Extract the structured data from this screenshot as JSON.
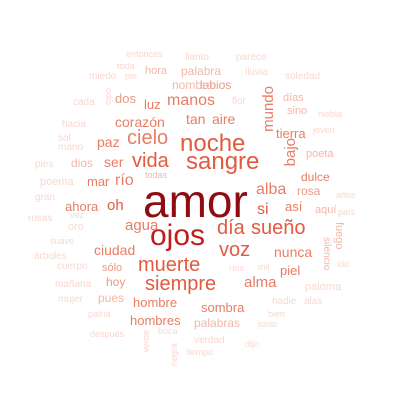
{
  "words": [
    {
      "text": "amor",
      "count": 65
    },
    {
      "text": "ojos",
      "count": 32
    },
    {
      "text": "noche",
      "count": 26
    },
    {
      "text": "sangre",
      "count": 26
    },
    {
      "text": "vida",
      "count": 22
    },
    {
      "text": "cielo",
      "count": 22
    },
    {
      "text": "muerte",
      "count": 22
    },
    {
      "text": "siempre",
      "count": 20
    },
    {
      "text": "día",
      "count": 20
    },
    {
      "text": "sueño",
      "count": 19
    },
    {
      "text": "voz",
      "count": 18
    },
    {
      "text": "alba",
      "count": 16
    },
    {
      "text": "río",
      "count": 16
    },
    {
      "text": "si",
      "count": 15
    },
    {
      "text": "manos",
      "count": 14
    },
    {
      "text": "mundo",
      "count": 14
    },
    {
      "text": "bajo",
      "count": 14
    },
    {
      "text": "agua",
      "count": 14
    },
    {
      "text": "alma",
      "count": 14
    },
    {
      "text": "oh",
      "count": 14
    },
    {
      "text": "corazón",
      "count": 13
    },
    {
      "text": "tan",
      "count": 12
    },
    {
      "text": "aire",
      "count": 12
    },
    {
      "text": "ciudad",
      "count": 12
    },
    {
      "text": "nunca",
      "count": 12
    },
    {
      "text": "paz",
      "count": 12
    },
    {
      "text": "ser",
      "count": 12
    },
    {
      "text": "tierra",
      "count": 11
    },
    {
      "text": "mar",
      "count": 11
    },
    {
      "text": "ahora",
      "count": 11
    },
    {
      "text": "luz",
      "count": 11
    },
    {
      "text": "dos",
      "count": 10
    },
    {
      "text": "piel",
      "count": 10
    },
    {
      "text": "así",
      "count": 10
    },
    {
      "text": "rosa",
      "count": 10
    },
    {
      "text": "dulce",
      "count": 10
    },
    {
      "text": "hombre",
      "count": 10
    },
    {
      "text": "sombra",
      "count": 10
    },
    {
      "text": "hombres",
      "count": 10
    },
    {
      "text": "hoy",
      "count": 10
    },
    {
      "text": "sólo",
      "count": 10
    },
    {
      "text": "labios",
      "count": 9
    },
    {
      "text": "nombre",
      "count": 9
    },
    {
      "text": "palabra",
      "count": 9
    },
    {
      "text": "hora",
      "count": 8
    },
    {
      "text": "dios",
      "count": 8
    },
    {
      "text": "todas",
      "count": 7
    },
    {
      "text": "pues",
      "count": 8
    },
    {
      "text": "palabras",
      "count": 8
    },
    {
      "text": "aquí",
      "count": 8
    },
    {
      "text": "poeta",
      "count": 7
    },
    {
      "text": "días",
      "count": 7
    },
    {
      "text": "sino",
      "count": 7
    },
    {
      "text": "fuego",
      "count": 7
    },
    {
      "text": "silencio",
      "count": 6
    },
    {
      "text": "lluvia",
      "count": 6
    },
    {
      "text": "llanto",
      "count": 6
    },
    {
      "text": "parece",
      "count": 6
    },
    {
      "text": "entonces",
      "count": 6
    },
    {
      "text": "toda",
      "count": 6
    },
    {
      "text": "miedo",
      "count": 6
    },
    {
      "text": "pie",
      "count": 6
    },
    {
      "text": "odio",
      "count": 6
    },
    {
      "text": "cada",
      "count": 6
    },
    {
      "text": "soledad",
      "count": 6
    },
    {
      "text": "niebla",
      "count": 6
    },
    {
      "text": "joven",
      "count": 6
    },
    {
      "text": "sol",
      "count": 6
    },
    {
      "text": "mano",
      "count": 6
    },
    {
      "text": "pies",
      "count": 6
    },
    {
      "text": "poema",
      "count": 6
    },
    {
      "text": "gran",
      "count": 6
    },
    {
      "text": "vez",
      "count": 6
    },
    {
      "text": "rosas",
      "count": 6
    },
    {
      "text": "suave",
      "count": 6
    },
    {
      "text": "árboles",
      "count": 6
    },
    {
      "text": "cuerpo",
      "count": 6
    },
    {
      "text": "mañana",
      "count": 6
    },
    {
      "text": "mujer",
      "count": 6
    },
    {
      "text": "patria",
      "count": 6
    },
    {
      "text": "después",
      "count": 6
    },
    {
      "text": "verde",
      "count": 6
    },
    {
      "text": "boca",
      "count": 6
    },
    {
      "text": "negra",
      "count": 6
    },
    {
      "text": "tiempo",
      "count": 6
    },
    {
      "text": "verdad",
      "count": 6
    },
    {
      "text": "dijo",
      "count": 6
    },
    {
      "text": "junio",
      "count": 6
    },
    {
      "text": "bien",
      "count": 6
    },
    {
      "text": "nadie",
      "count": 6
    },
    {
      "text": "alas",
      "count": 6
    },
    {
      "text": "paloma",
      "count": 6
    },
    {
      "text": "mil",
      "count": 6
    },
    {
      "text": "ríos",
      "count": 6
    },
    {
      "text": "flor",
      "count": 6
    },
    {
      "text": "hacia",
      "count": 6
    },
    {
      "text": "años",
      "count": 6
    },
    {
      "text": "país",
      "count": 6
    },
    {
      "text": "ido",
      "count": 6
    },
    {
      "text": "oro",
      "count": 6
    }
  ]
}
